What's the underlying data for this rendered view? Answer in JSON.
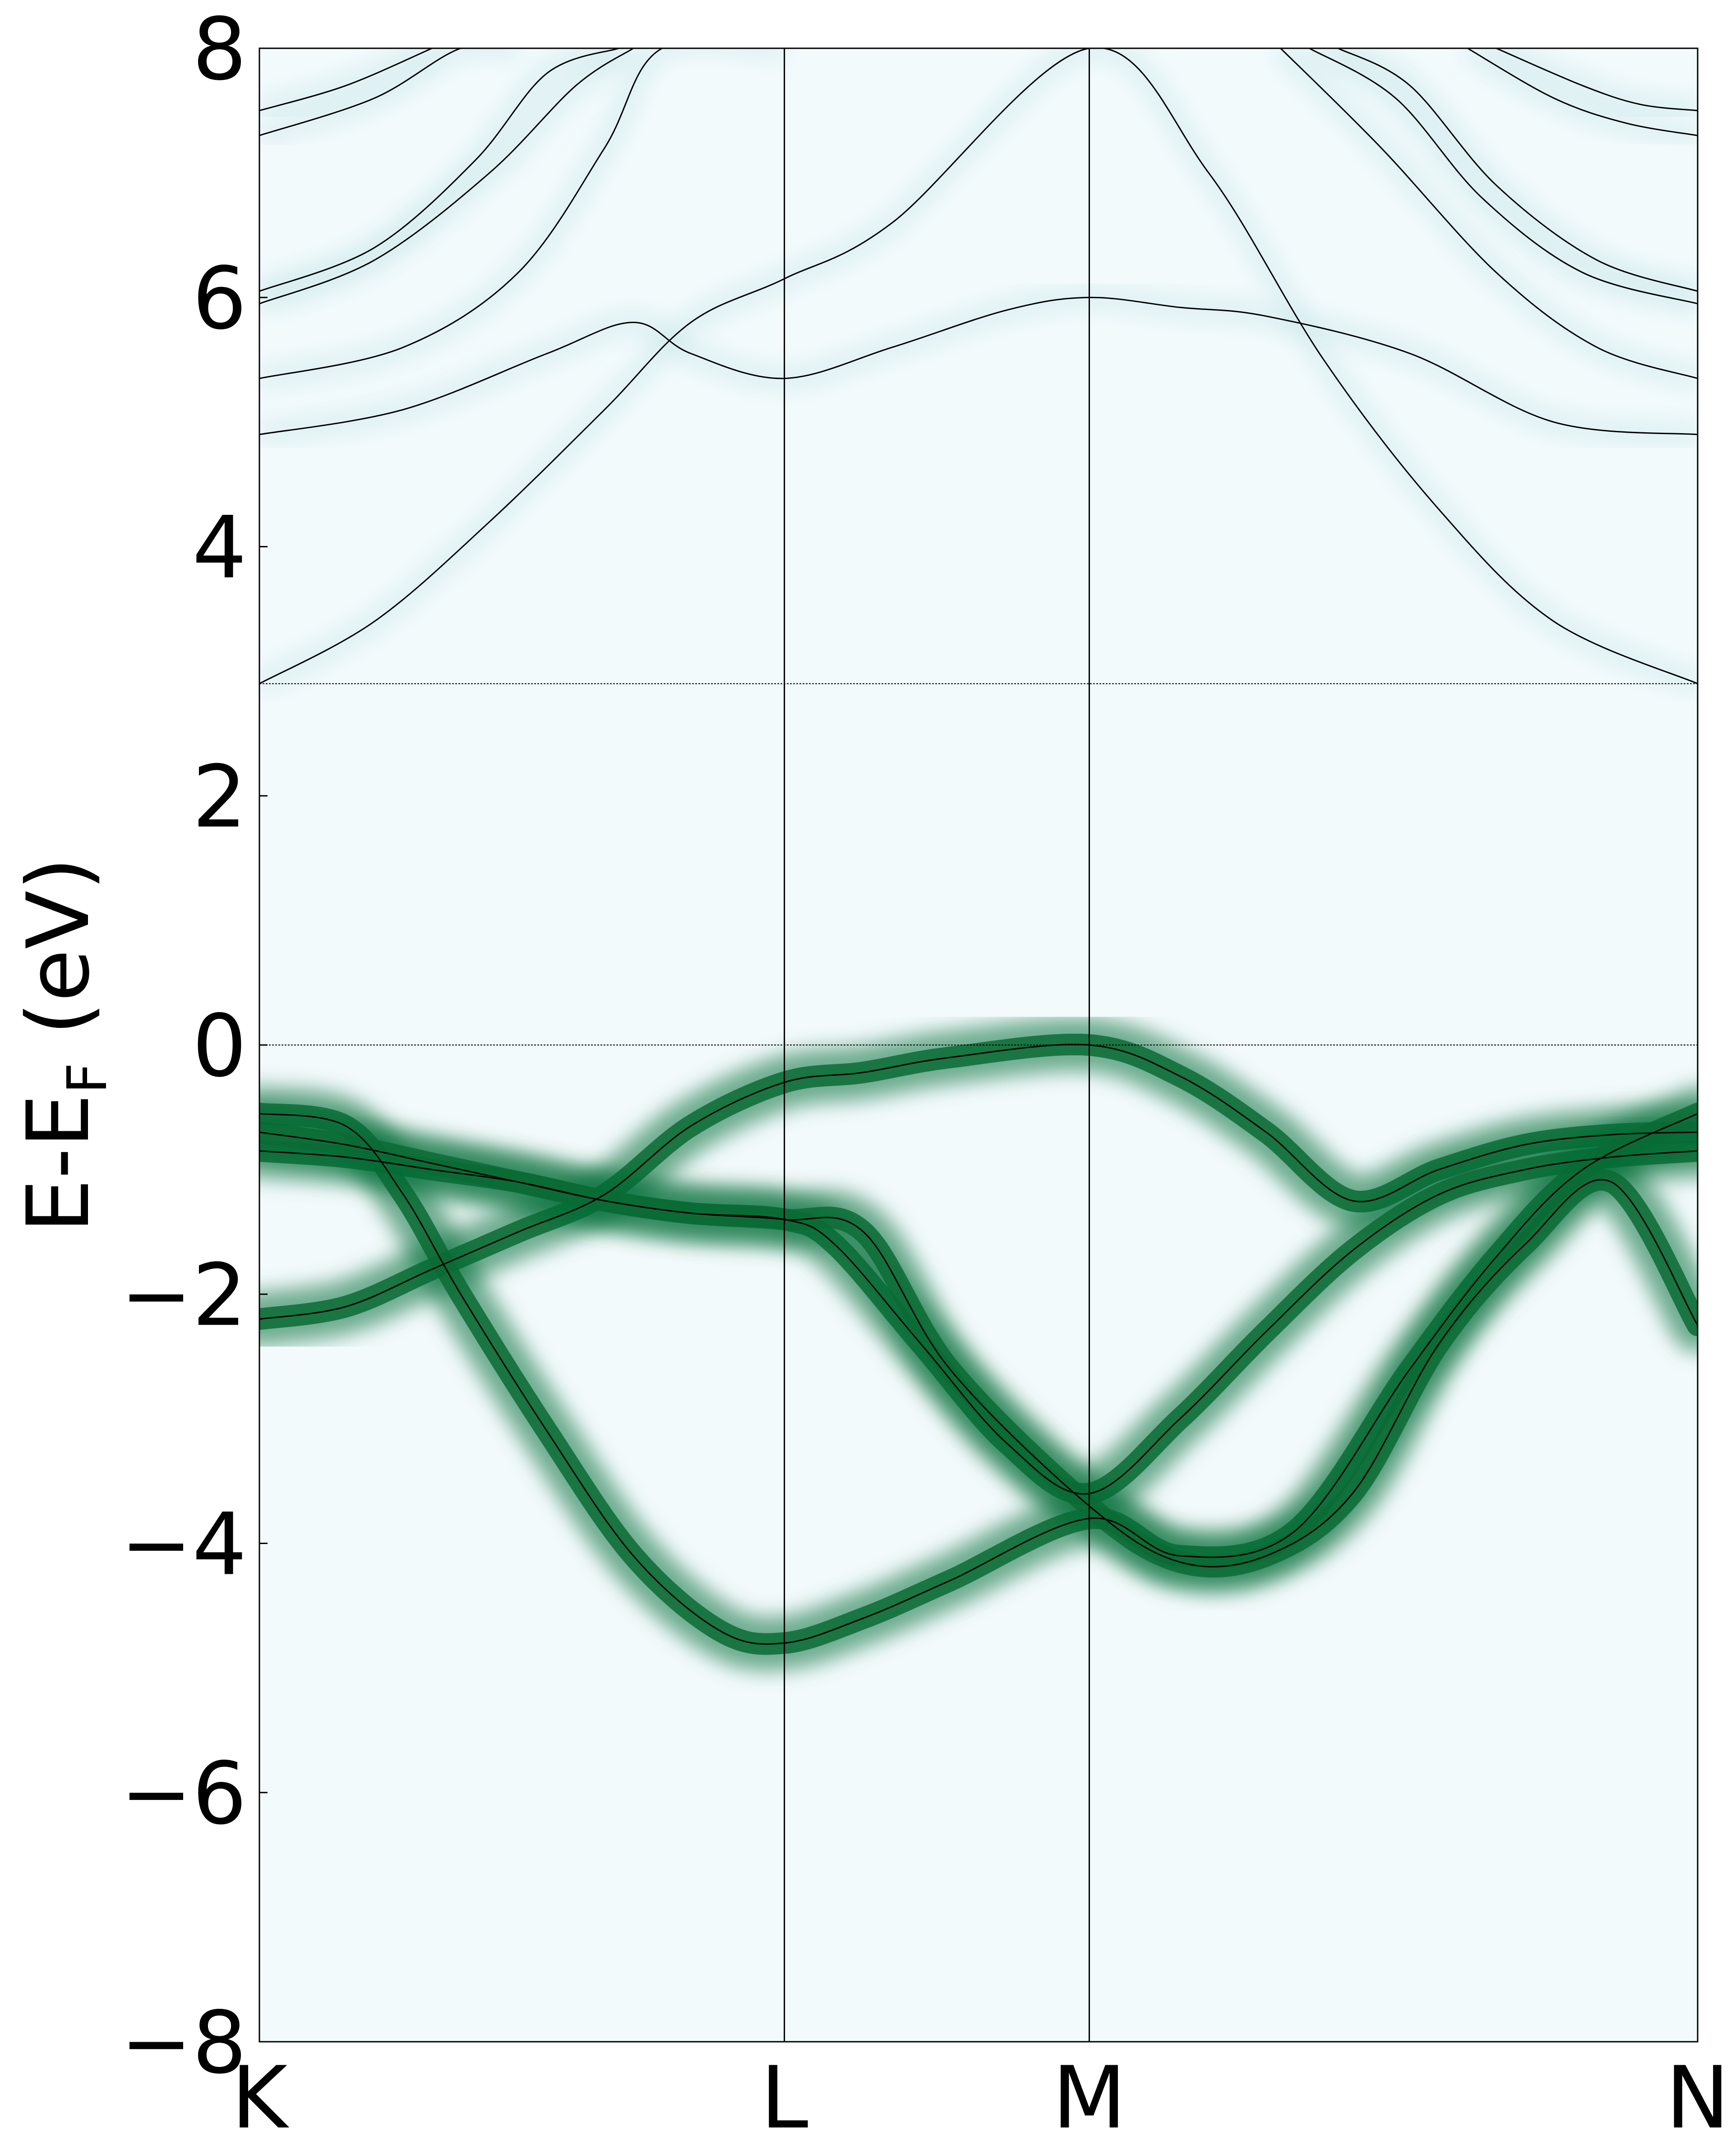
{
  "chart_data": {
    "type": "line",
    "title": "",
    "xlabel": "",
    "ylabel": {
      "main": "E-E",
      "subscript": "F",
      "unit": " (eV)"
    },
    "ylim": [
      -8,
      8
    ],
    "xlim": [
      0,
      1
    ],
    "yticks": [
      {
        "value": -8,
        "label": "−8"
      },
      {
        "value": -6,
        "label": "−6"
      },
      {
        "value": -4,
        "label": "−4"
      },
      {
        "value": -2,
        "label": "−2"
      },
      {
        "value": 0,
        "label": "0"
      },
      {
        "value": 2,
        "label": "2"
      },
      {
        "value": 4,
        "label": "4"
      },
      {
        "value": 6,
        "label": "6"
      },
      {
        "value": 8,
        "label": "8"
      }
    ],
    "kpoints": [
      {
        "label": "K",
        "x": 0.0
      },
      {
        "label": "L",
        "x": 0.365
      },
      {
        "label": "M",
        "x": 0.577
      },
      {
        "label": "N",
        "x": 1.0
      }
    ],
    "reference_lines": [
      0.0,
      2.9
    ],
    "colors": {
      "background": "#f2fafc",
      "weight_color": "#0b6b34",
      "band_line": "#000000"
    },
    "bands": [
      {
        "name": "band-1",
        "weighted": true,
        "x": [
          0,
          0.06,
          0.12,
          0.18,
          0.24,
          0.3,
          0.365,
          0.42,
          0.48,
          0.577,
          0.64,
          0.7,
          0.76,
          0.82,
          0.88,
          0.94,
          1.0
        ],
        "y": [
          -2.2,
          -2.1,
          -1.8,
          -1.5,
          -1.2,
          -0.65,
          -0.3,
          -0.22,
          -0.1,
          0.0,
          -0.25,
          -0.7,
          -1.25,
          -1.0,
          -0.8,
          -0.72,
          -0.7
        ]
      },
      {
        "name": "band-2",
        "weighted": true,
        "x": [
          0,
          0.06,
          0.12,
          0.18,
          0.24,
          0.3,
          0.365,
          0.4,
          0.46,
          0.52,
          0.577,
          0.64,
          0.7,
          0.76,
          0.82,
          0.88,
          0.94,
          1.0
        ],
        "y": [
          -0.85,
          -0.9,
          -1.0,
          -1.1,
          -1.25,
          -1.35,
          -1.4,
          -1.6,
          -2.4,
          -3.2,
          -3.6,
          -3.0,
          -2.3,
          -1.65,
          -1.2,
          -1.0,
          -0.9,
          -0.85
        ]
      },
      {
        "name": "band-3",
        "weighted": true,
        "x": [
          0,
          0.06,
          0.1,
          0.14,
          0.2,
          0.26,
          0.32,
          0.365,
          0.42,
          0.48,
          0.577,
          0.64,
          0.72,
          0.8,
          0.86,
          0.92,
          1.0
        ],
        "y": [
          -0.55,
          -0.65,
          -1.2,
          -2.0,
          -3.1,
          -4.1,
          -4.7,
          -4.8,
          -4.6,
          -4.3,
          -3.8,
          -4.1,
          -3.9,
          -2.6,
          -1.7,
          -1.0,
          -0.55
        ]
      },
      {
        "name": "band-4",
        "weighted": true,
        "x": [
          0,
          0.06,
          0.12,
          0.18,
          0.24,
          0.3,
          0.365,
          0.42,
          0.48,
          0.577,
          0.64,
          0.7,
          0.76,
          0.82,
          0.88,
          0.94,
          1.0
        ],
        "y": [
          -0.7,
          -0.8,
          -0.95,
          -1.1,
          -1.25,
          -1.35,
          -1.4,
          -1.5,
          -2.6,
          -3.7,
          -4.15,
          -4.1,
          -3.6,
          -2.4,
          -1.6,
          -1.1,
          -2.25
        ]
      },
      {
        "name": "band-5",
        "weighted": false,
        "x": [
          0,
          0.08,
          0.16,
          0.24,
          0.3,
          0.365,
          0.44,
          0.577,
          0.66,
          0.74,
          0.82,
          0.9,
          1.0
        ],
        "y": [
          2.9,
          3.4,
          4.2,
          5.1,
          5.8,
          6.15,
          6.6,
          8.0,
          7.0,
          5.5,
          4.3,
          3.4,
          2.9
        ]
      },
      {
        "name": "band-6",
        "weighted": false,
        "x": [
          0,
          0.1,
          0.2,
          0.26,
          0.3,
          0.365,
          0.44,
          0.52,
          0.577,
          0.64,
          0.7,
          0.8,
          0.9,
          1.0
        ],
        "y": [
          4.9,
          5.1,
          5.55,
          5.8,
          5.55,
          5.35,
          5.6,
          5.9,
          6.0,
          5.92,
          5.85,
          5.55,
          5.0,
          4.9
        ]
      },
      {
        "name": "band-7",
        "weighted": false,
        "x": [
          0,
          0.1,
          0.18,
          0.24,
          0.28,
          0.365
        ],
        "y": [
          5.35,
          5.6,
          6.2,
          7.2,
          8.0,
          8.0
        ]
      },
      {
        "name": "band-8",
        "weighted": false,
        "x": [
          0,
          0.08,
          0.16,
          0.22,
          0.26
        ],
        "y": [
          5.95,
          6.3,
          7.0,
          7.7,
          8.0
        ]
      },
      {
        "name": "band-9",
        "weighted": false,
        "x": [
          0,
          0.08,
          0.14,
          0.18
        ],
        "y": [
          7.3,
          7.6,
          8.0,
          8.0
        ]
      },
      {
        "name": "band-10",
        "weighted": false,
        "x": [
          0,
          0.06,
          0.12
        ],
        "y": [
          7.5,
          7.7,
          8.0
        ]
      },
      {
        "name": "band-11",
        "weighted": false,
        "x": [
          0,
          0.08,
          0.15,
          0.2,
          0.25
        ],
        "y": [
          6.05,
          6.4,
          7.1,
          7.8,
          8.0
        ]
      },
      {
        "name": "band-12",
        "weighted": false,
        "x": [
          0.75,
          0.8,
          0.86,
          0.93,
          1.0
        ],
        "y": [
          8.0,
          7.7,
          6.9,
          6.3,
          6.05
        ]
      },
      {
        "name": "band-13",
        "weighted": false,
        "x": [
          0.73,
          0.79,
          0.85,
          0.92,
          1.0
        ],
        "y": [
          8.0,
          7.6,
          6.8,
          6.2,
          5.95
        ]
      },
      {
        "name": "band-14",
        "weighted": false,
        "x": [
          0.71,
          0.78,
          0.86,
          0.93,
          1.0
        ],
        "y": [
          8.0,
          7.2,
          6.2,
          5.6,
          5.35
        ]
      },
      {
        "name": "band-15",
        "weighted": false,
        "x": [
          0.84,
          0.9,
          0.95,
          1.0
        ],
        "y": [
          8.0,
          7.6,
          7.4,
          7.3
        ]
      },
      {
        "name": "band-16",
        "weighted": false,
        "x": [
          0.86,
          0.92,
          0.96,
          1.0
        ],
        "y": [
          8.0,
          7.7,
          7.55,
          7.5
        ]
      }
    ]
  }
}
